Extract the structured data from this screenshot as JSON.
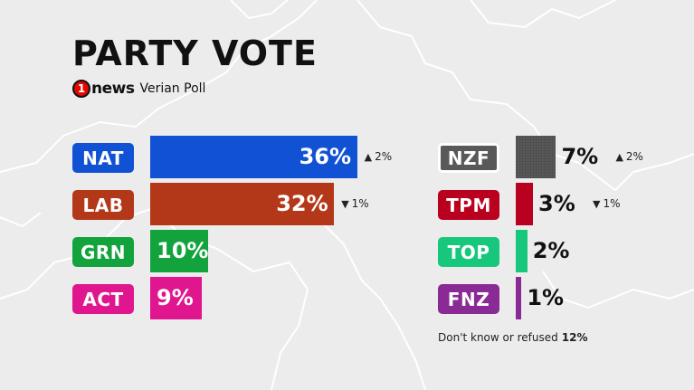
{
  "title": "PARTY VOTE",
  "brand": {
    "logo_mark": "1",
    "logo_text": "news",
    "poll_name": "Verian Poll"
  },
  "colors": {
    "NAT": "#1152d4",
    "LAB": "#b33819",
    "GRN": "#13a33d",
    "ACT": "#e0168f",
    "NZF": "#595959",
    "TPM": "#b9001f",
    "TOP": "#17c77c",
    "FNZ": "#8a2a94"
  },
  "chart_data": {
    "type": "bar",
    "title": "PARTY VOTE",
    "value_unit": "%",
    "categories": [
      "NAT",
      "LAB",
      "GRN",
      "ACT",
      "NZF",
      "TPM",
      "TOP",
      "FNZ"
    ],
    "values": [
      36,
      32,
      10,
      9,
      7,
      3,
      2,
      1
    ],
    "changes": [
      {
        "party": "NAT",
        "direction": "up",
        "label": "2%"
      },
      {
        "party": "LAB",
        "direction": "down",
        "label": "1%"
      },
      {
        "party": "GRN",
        "direction": "",
        "label": ""
      },
      {
        "party": "ACT",
        "direction": "",
        "label": ""
      },
      {
        "party": "NZF",
        "direction": "up",
        "label": "2%"
      },
      {
        "party": "TPM",
        "direction": "down",
        "label": "1%"
      },
      {
        "party": "TOP",
        "direction": "",
        "label": ""
      },
      {
        "party": "FNZ",
        "direction": "",
        "label": ""
      }
    ],
    "value_labels": [
      "36%",
      "32%",
      "10%",
      "9%",
      "7%",
      "3%",
      "2%",
      "1%"
    ],
    "legend": "none",
    "grid": false
  },
  "footnote": {
    "text": "Don't know or refused",
    "value": "12%"
  }
}
